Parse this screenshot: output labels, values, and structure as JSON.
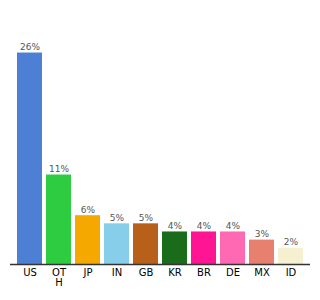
{
  "chart_data": {
    "type": "bar",
    "categories": [
      "US",
      "OT\nH",
      "JP",
      "IN",
      "GB",
      "KR",
      "BR",
      "DE",
      "MX",
      "ID"
    ],
    "values": [
      26,
      11,
      6,
      5,
      5,
      4,
      4,
      4,
      3,
      2
    ],
    "value_labels": [
      "26%",
      "11%",
      "6%",
      "5%",
      "5%",
      "4%",
      "4%",
      "4%",
      "3%",
      "2%"
    ],
    "colors": [
      "#4d7fd4",
      "#2ecc40",
      "#f5a800",
      "#87ceeb",
      "#b8601a",
      "#1a6b1a",
      "#ff1493",
      "#ff69b4",
      "#e88070",
      "#f5f0d0"
    ],
    "ylim": [
      0,
      30
    ],
    "data_labels": true,
    "tick_labels": "x",
    "grid": false
  }
}
